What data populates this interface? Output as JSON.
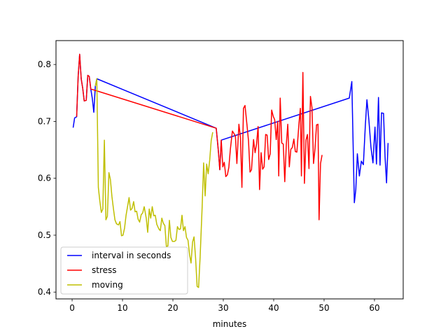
{
  "chart_data": {
    "type": "line",
    "title": "",
    "xlabel": "minutes",
    "ylabel": "",
    "xlim": [
      -3.2,
      65.7
    ],
    "ylim": [
      0.388,
      0.842
    ],
    "xticks": [
      0,
      10,
      20,
      30,
      40,
      50,
      60
    ],
    "xtick_labels": [
      "0",
      "10",
      "20",
      "30",
      "40",
      "50",
      "60"
    ],
    "yticks": [
      0.4,
      0.5,
      0.6,
      0.7,
      0.8
    ],
    "ytick_labels": [
      "0.4",
      "0.5",
      "0.6",
      "0.7",
      "0.8"
    ],
    "grid": false,
    "legend_position": "lower-left",
    "series": [
      {
        "name": "interval in seconds",
        "color": "#0000ff",
        "points": [
          [
            0.2,
            0.689
          ],
          [
            0.5,
            0.706
          ],
          [
            0.9,
            0.708
          ],
          [
            1.2,
            0.78
          ],
          [
            1.5,
            0.818
          ],
          [
            1.8,
            0.775
          ],
          [
            2.1,
            0.758
          ],
          [
            2.4,
            0.736
          ],
          [
            2.8,
            0.737
          ],
          [
            3.1,
            0.781
          ],
          [
            3.4,
            0.779
          ],
          [
            3.7,
            0.757
          ],
          [
            4.0,
            0.741
          ],
          [
            4.3,
            0.716
          ],
          [
            4.6,
            0.762
          ],
          [
            4.9,
            0.775
          ],
          [
            28.6,
            0.688
          ],
          [
            29.0,
            0.65
          ],
          [
            29.3,
            0.615
          ],
          [
            29.6,
            0.667
          ],
          [
            55.0,
            0.741
          ],
          [
            55.5,
            0.77
          ],
          [
            56.0,
            0.557
          ],
          [
            56.3,
            0.58
          ],
          [
            56.6,
            0.643
          ],
          [
            57.0,
            0.604
          ],
          [
            57.4,
            0.63
          ],
          [
            57.8,
            0.624
          ],
          [
            58.2,
            0.695
          ],
          [
            58.5,
            0.738
          ],
          [
            58.9,
            0.702
          ],
          [
            59.3,
            0.655
          ],
          [
            59.7,
            0.627
          ],
          [
            60.1,
            0.69
          ],
          [
            60.4,
            0.625
          ],
          [
            60.8,
            0.742
          ],
          [
            61.1,
            0.623
          ],
          [
            61.4,
            0.715
          ],
          [
            61.8,
            0.714
          ],
          [
            62.1,
            0.637
          ],
          [
            62.4,
            0.592
          ],
          [
            62.7,
            0.662
          ]
        ]
      },
      {
        "name": "stress",
        "color": "#ff0000",
        "points": [
          [
            0.9,
            0.708
          ],
          [
            1.2,
            0.78
          ],
          [
            1.5,
            0.818
          ],
          [
            1.8,
            0.775
          ],
          [
            2.1,
            0.758
          ],
          [
            2.4,
            0.736
          ],
          [
            2.8,
            0.737
          ],
          [
            3.1,
            0.781
          ],
          [
            3.4,
            0.779
          ],
          [
            3.7,
            0.757
          ],
          [
            28.6,
            0.688
          ],
          [
            29.0,
            0.65
          ],
          [
            29.3,
            0.615
          ],
          [
            29.6,
            0.667
          ],
          [
            29.9,
            0.62
          ],
          [
            30.2,
            0.628
          ],
          [
            30.5,
            0.603
          ],
          [
            30.8,
            0.606
          ],
          [
            31.1,
            0.619
          ],
          [
            31.4,
            0.651
          ],
          [
            31.8,
            0.683
          ],
          [
            32.1,
            0.679
          ],
          [
            32.4,
            0.674
          ],
          [
            32.7,
            0.626
          ],
          [
            33.1,
            0.695
          ],
          [
            33.4,
            0.672
          ],
          [
            33.7,
            0.584
          ],
          [
            34.0,
            0.723
          ],
          [
            34.3,
            0.728
          ],
          [
            34.7,
            0.694
          ],
          [
            35.0,
            0.666
          ],
          [
            35.3,
            0.611
          ],
          [
            35.6,
            0.615
          ],
          [
            36.0,
            0.668
          ],
          [
            36.3,
            0.645
          ],
          [
            36.6,
            0.66
          ],
          [
            36.9,
            0.691
          ],
          [
            37.2,
            0.58
          ],
          [
            37.5,
            0.645
          ],
          [
            37.8,
            0.616
          ],
          [
            38.1,
            0.62
          ],
          [
            38.4,
            0.677
          ],
          [
            38.7,
            0.676
          ],
          [
            39.0,
            0.633
          ],
          [
            39.3,
            0.643
          ],
          [
            39.6,
            0.72
          ],
          [
            39.9,
            0.709
          ],
          [
            40.2,
            0.703
          ],
          [
            40.5,
            0.668
          ],
          [
            40.8,
            0.7
          ],
          [
            41.0,
            0.604
          ],
          [
            41.3,
            0.741
          ],
          [
            41.6,
            0.662
          ],
          [
            41.9,
            0.66
          ],
          [
            42.2,
            0.594
          ],
          [
            42.5,
            0.659
          ],
          [
            42.8,
            0.695
          ],
          [
            43.1,
            0.62
          ],
          [
            43.4,
            0.651
          ],
          [
            43.7,
            0.654
          ],
          [
            44.0,
            0.669
          ],
          [
            44.3,
            0.647
          ],
          [
            44.6,
            0.646
          ],
          [
            45.0,
            0.695
          ],
          [
            45.3,
            0.723
          ],
          [
            45.5,
            0.604
          ],
          [
            45.8,
            0.786
          ],
          [
            46.1,
            0.591
          ],
          [
            46.4,
            0.667
          ],
          [
            46.7,
            0.677
          ],
          [
            47.0,
            0.617
          ],
          [
            47.3,
            0.744
          ],
          [
            47.6,
            0.724
          ],
          [
            47.9,
            0.626
          ],
          [
            48.2,
            0.652
          ],
          [
            48.5,
            0.694
          ],
          [
            48.8,
            0.695
          ],
          [
            49.0,
            0.527
          ],
          [
            49.3,
            0.626
          ],
          [
            49.6,
            0.641
          ]
        ]
      },
      {
        "name": "moving",
        "color": "#bfbf00",
        "points": [
          [
            4.6,
            0.762
          ],
          [
            4.9,
            0.775
          ],
          [
            5.2,
            0.584
          ],
          [
            5.5,
            0.56
          ],
          [
            5.8,
            0.54
          ],
          [
            6.1,
            0.546
          ],
          [
            6.4,
            0.667
          ],
          [
            6.7,
            0.527
          ],
          [
            7.0,
            0.533
          ],
          [
            7.3,
            0.61
          ],
          [
            7.6,
            0.598
          ],
          [
            7.9,
            0.568
          ],
          [
            8.2,
            0.546
          ],
          [
            8.5,
            0.527
          ],
          [
            8.8,
            0.52
          ],
          [
            9.2,
            0.518
          ],
          [
            9.5,
            0.524
          ],
          [
            9.8,
            0.499
          ],
          [
            10.1,
            0.5
          ],
          [
            10.4,
            0.512
          ],
          [
            10.7,
            0.535
          ],
          [
            11.0,
            0.55
          ],
          [
            11.3,
            0.566
          ],
          [
            11.6,
            0.544
          ],
          [
            11.9,
            0.547
          ],
          [
            12.2,
            0.559
          ],
          [
            12.5,
            0.541
          ],
          [
            12.8,
            0.542
          ],
          [
            13.1,
            0.528
          ],
          [
            13.4,
            0.523
          ],
          [
            13.7,
            0.536
          ],
          [
            14.0,
            0.539
          ],
          [
            14.3,
            0.55
          ],
          [
            14.7,
            0.53
          ],
          [
            15.0,
            0.505
          ],
          [
            15.3,
            0.546
          ],
          [
            15.6,
            0.53
          ],
          [
            15.9,
            0.55
          ],
          [
            16.2,
            0.534
          ],
          [
            16.5,
            0.535
          ],
          [
            16.8,
            0.519
          ],
          [
            17.2,
            0.511
          ],
          [
            17.5,
            0.508
          ],
          [
            17.8,
            0.53
          ],
          [
            18.1,
            0.521
          ],
          [
            18.4,
            0.517
          ],
          [
            18.7,
            0.48
          ],
          [
            19.0,
            0.481
          ],
          [
            19.3,
            0.526
          ],
          [
            19.6,
            0.496
          ],
          [
            19.9,
            0.489
          ],
          [
            20.3,
            0.489
          ],
          [
            20.6,
            0.491
          ],
          [
            20.9,
            0.515
          ],
          [
            21.2,
            0.51
          ],
          [
            21.5,
            0.511
          ],
          [
            21.8,
            0.535
          ],
          [
            22.1,
            0.508
          ],
          [
            22.4,
            0.515
          ],
          [
            22.7,
            0.496
          ],
          [
            23.0,
            0.491
          ],
          [
            23.3,
            0.466
          ],
          [
            23.6,
            0.451
          ],
          [
            23.9,
            0.488
          ],
          [
            24.2,
            0.497
          ],
          [
            24.5,
            0.46
          ],
          [
            24.8,
            0.41
          ],
          [
            25.1,
            0.408
          ],
          [
            25.4,
            0.462
          ],
          [
            25.8,
            0.55
          ],
          [
            26.1,
            0.627
          ],
          [
            26.4,
            0.569
          ],
          [
            26.7,
            0.625
          ],
          [
            27.0,
            0.608
          ],
          [
            27.3,
            0.632
          ],
          [
            27.6,
            0.666
          ],
          [
            27.9,
            0.681
          ]
        ]
      }
    ]
  }
}
